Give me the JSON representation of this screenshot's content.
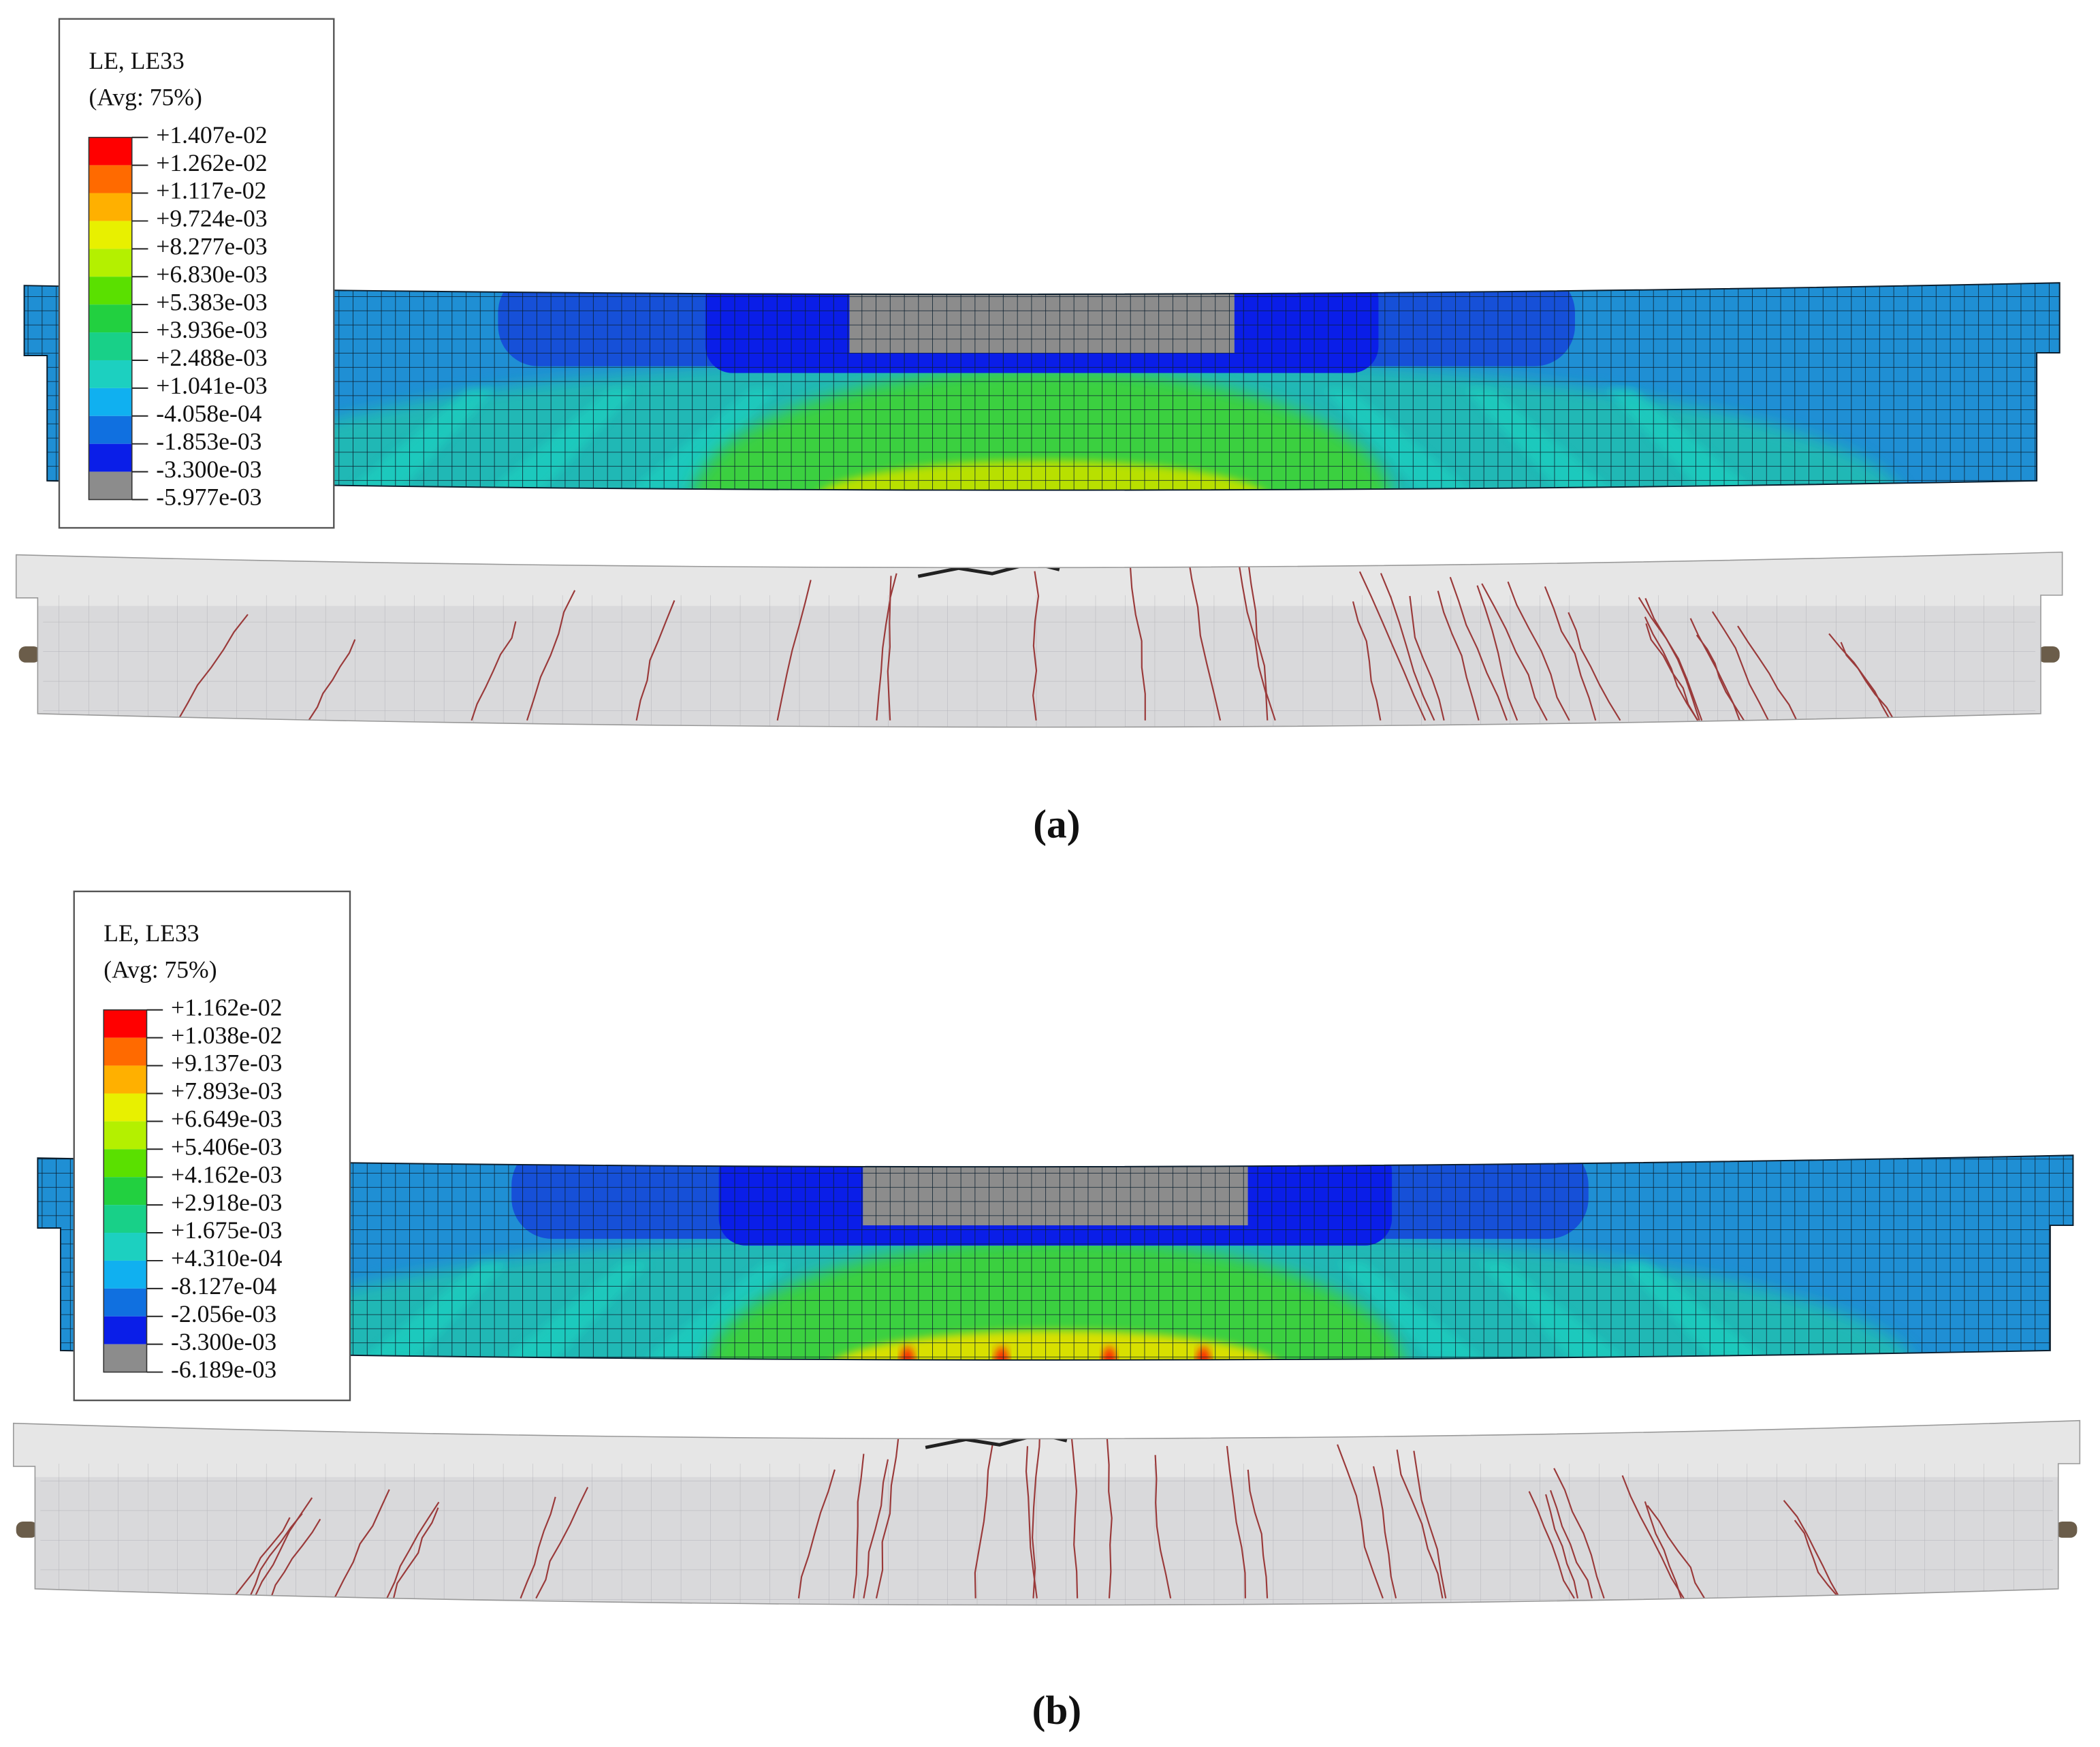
{
  "panels": [
    {
      "legend": {
        "title": "LE, LE33",
        "subtitle": "(Avg: 75%)",
        "labels": [
          "+1.407e-02",
          "+1.262e-02",
          "+1.117e-02",
          "+9.724e-03",
          "+8.277e-03",
          "+6.830e-03",
          "+5.383e-03",
          "+3.936e-03",
          "+2.488e-03",
          "+1.041e-03",
          "-4.058e-04",
          "-1.853e-03",
          "-3.300e-03",
          "-5.977e-03"
        ],
        "colors": [
          "#ff0000",
          "#ff6a00",
          "#ffb000",
          "#e8f000",
          "#b4f000",
          "#5ae000",
          "#22d040",
          "#18d088",
          "#1cd0c0",
          "#10b0f0",
          "#1070e0",
          "#0a1ee8",
          "#8c8c8c"
        ]
      },
      "caption": "(a)"
    },
    {
      "legend": {
        "title": "LE, LE33",
        "subtitle": "(Avg: 75%)",
        "labels": [
          "+1.162e-02",
          "+1.038e-02",
          "+9.137e-03",
          "+7.893e-03",
          "+6.649e-03",
          "+5.406e-03",
          "+4.162e-03",
          "+2.918e-03",
          "+1.675e-03",
          "+4.310e-04",
          "-8.127e-04",
          "-2.056e-03",
          "-3.300e-03",
          "-6.189e-03"
        ],
        "colors": [
          "#ff0000",
          "#ff6a00",
          "#ffb000",
          "#e8f000",
          "#b4f000",
          "#5ae000",
          "#22d040",
          "#18d088",
          "#1cd0c0",
          "#10b0f0",
          "#1070e0",
          "#0a1ee8",
          "#8c8c8c"
        ]
      },
      "caption": "(b)"
    }
  ]
}
